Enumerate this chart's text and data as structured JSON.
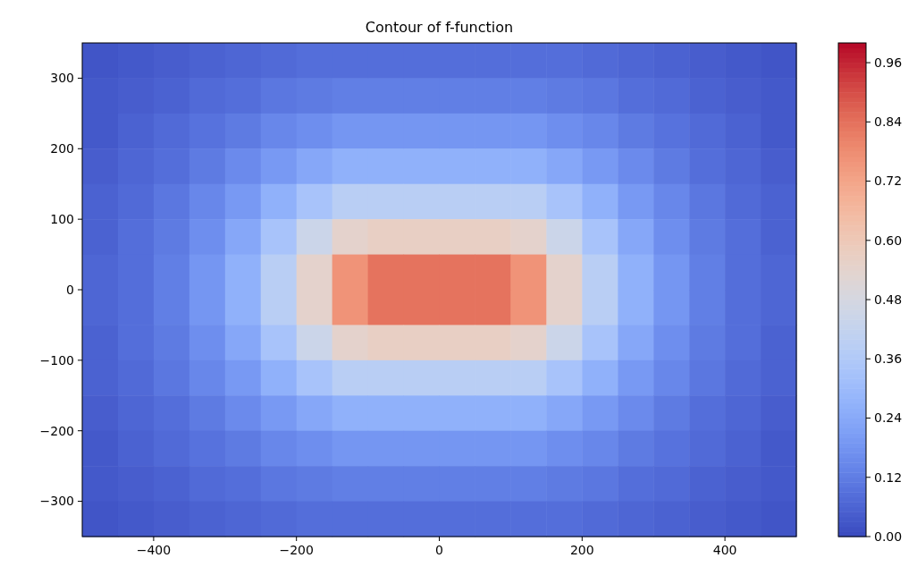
{
  "chart_data": {
    "type": "heatmap",
    "title": "Contour of f-function",
    "xlim": [
      -500,
      500
    ],
    "ylim": [
      -350,
      350
    ],
    "xticks": [
      -400,
      -200,
      0,
      200,
      400
    ],
    "yticks": [
      -300,
      -200,
      -100,
      0,
      100,
      200,
      300
    ],
    "clim": [
      0,
      1.0
    ],
    "cticks": [
      {
        "value": 0,
        "label": "0.00"
      },
      {
        "value": 0.12,
        "label": "0.12"
      },
      {
        "value": 0.24,
        "label": "0.24"
      },
      {
        "value": 0.36,
        "label": "0.36"
      },
      {
        "value": 0.48,
        "label": "0.48"
      },
      {
        "value": 0.6,
        "label": "0.60"
      },
      {
        "value": 0.72,
        "label": "0.72"
      },
      {
        "value": 0.84,
        "label": "0.84"
      },
      {
        "value": 0.96,
        "label": "0.96"
      }
    ],
    "cells": [
      [
        0.02,
        0.03,
        0.04,
        0.05,
        0.06,
        0.07,
        0.08,
        0.08,
        0.08,
        0.08,
        0.08,
        0.08,
        0.08,
        0.08,
        0.07,
        0.06,
        0.05,
        0.04,
        0.03,
        0.02
      ],
      [
        0.03,
        0.04,
        0.05,
        0.07,
        0.08,
        0.1,
        0.11,
        0.12,
        0.12,
        0.12,
        0.12,
        0.12,
        0.12,
        0.11,
        0.1,
        0.08,
        0.07,
        0.05,
        0.04,
        0.03
      ],
      [
        0.03,
        0.05,
        0.07,
        0.09,
        0.11,
        0.14,
        0.16,
        0.18,
        0.18,
        0.18,
        0.18,
        0.18,
        0.18,
        0.16,
        0.14,
        0.11,
        0.09,
        0.07,
        0.05,
        0.03
      ],
      [
        0.04,
        0.06,
        0.08,
        0.11,
        0.15,
        0.19,
        0.23,
        0.26,
        0.26,
        0.26,
        0.26,
        0.26,
        0.26,
        0.23,
        0.19,
        0.15,
        0.11,
        0.08,
        0.06,
        0.04
      ],
      [
        0.05,
        0.07,
        0.1,
        0.14,
        0.19,
        0.26,
        0.33,
        0.38,
        0.38,
        0.38,
        0.38,
        0.38,
        0.38,
        0.33,
        0.26,
        0.19,
        0.14,
        0.1,
        0.07,
        0.05
      ],
      [
        0.05,
        0.08,
        0.11,
        0.16,
        0.23,
        0.33,
        0.44,
        0.54,
        0.56,
        0.56,
        0.56,
        0.56,
        0.54,
        0.44,
        0.33,
        0.23,
        0.16,
        0.11,
        0.08,
        0.05
      ],
      [
        0.06,
        0.08,
        0.12,
        0.18,
        0.26,
        0.38,
        0.54,
        0.76,
        0.83,
        0.83,
        0.83,
        0.83,
        0.76,
        0.54,
        0.38,
        0.26,
        0.18,
        0.12,
        0.08,
        0.06
      ],
      [
        0.06,
        0.08,
        0.12,
        0.18,
        0.26,
        0.38,
        0.54,
        0.76,
        0.83,
        0.83,
        0.83,
        0.83,
        0.76,
        0.54,
        0.38,
        0.26,
        0.18,
        0.12,
        0.08,
        0.06
      ],
      [
        0.05,
        0.08,
        0.11,
        0.16,
        0.23,
        0.33,
        0.44,
        0.54,
        0.56,
        0.56,
        0.56,
        0.56,
        0.54,
        0.44,
        0.33,
        0.23,
        0.16,
        0.11,
        0.08,
        0.05
      ],
      [
        0.05,
        0.07,
        0.1,
        0.14,
        0.19,
        0.26,
        0.33,
        0.38,
        0.38,
        0.38,
        0.38,
        0.38,
        0.38,
        0.33,
        0.26,
        0.19,
        0.14,
        0.1,
        0.07,
        0.05
      ],
      [
        0.04,
        0.06,
        0.08,
        0.11,
        0.15,
        0.19,
        0.23,
        0.26,
        0.26,
        0.26,
        0.26,
        0.26,
        0.26,
        0.23,
        0.19,
        0.15,
        0.11,
        0.08,
        0.06,
        0.04
      ],
      [
        0.03,
        0.05,
        0.07,
        0.09,
        0.11,
        0.14,
        0.16,
        0.18,
        0.18,
        0.18,
        0.18,
        0.18,
        0.18,
        0.16,
        0.14,
        0.11,
        0.09,
        0.07,
        0.05,
        0.03
      ],
      [
        0.03,
        0.04,
        0.05,
        0.07,
        0.08,
        0.1,
        0.11,
        0.12,
        0.12,
        0.12,
        0.12,
        0.12,
        0.12,
        0.11,
        0.1,
        0.08,
        0.07,
        0.05,
        0.04,
        0.03
      ],
      [
        0.02,
        0.03,
        0.04,
        0.05,
        0.06,
        0.07,
        0.08,
        0.08,
        0.08,
        0.08,
        0.08,
        0.08,
        0.08,
        0.08,
        0.07,
        0.06,
        0.05,
        0.04,
        0.03,
        0.02
      ]
    ]
  }
}
